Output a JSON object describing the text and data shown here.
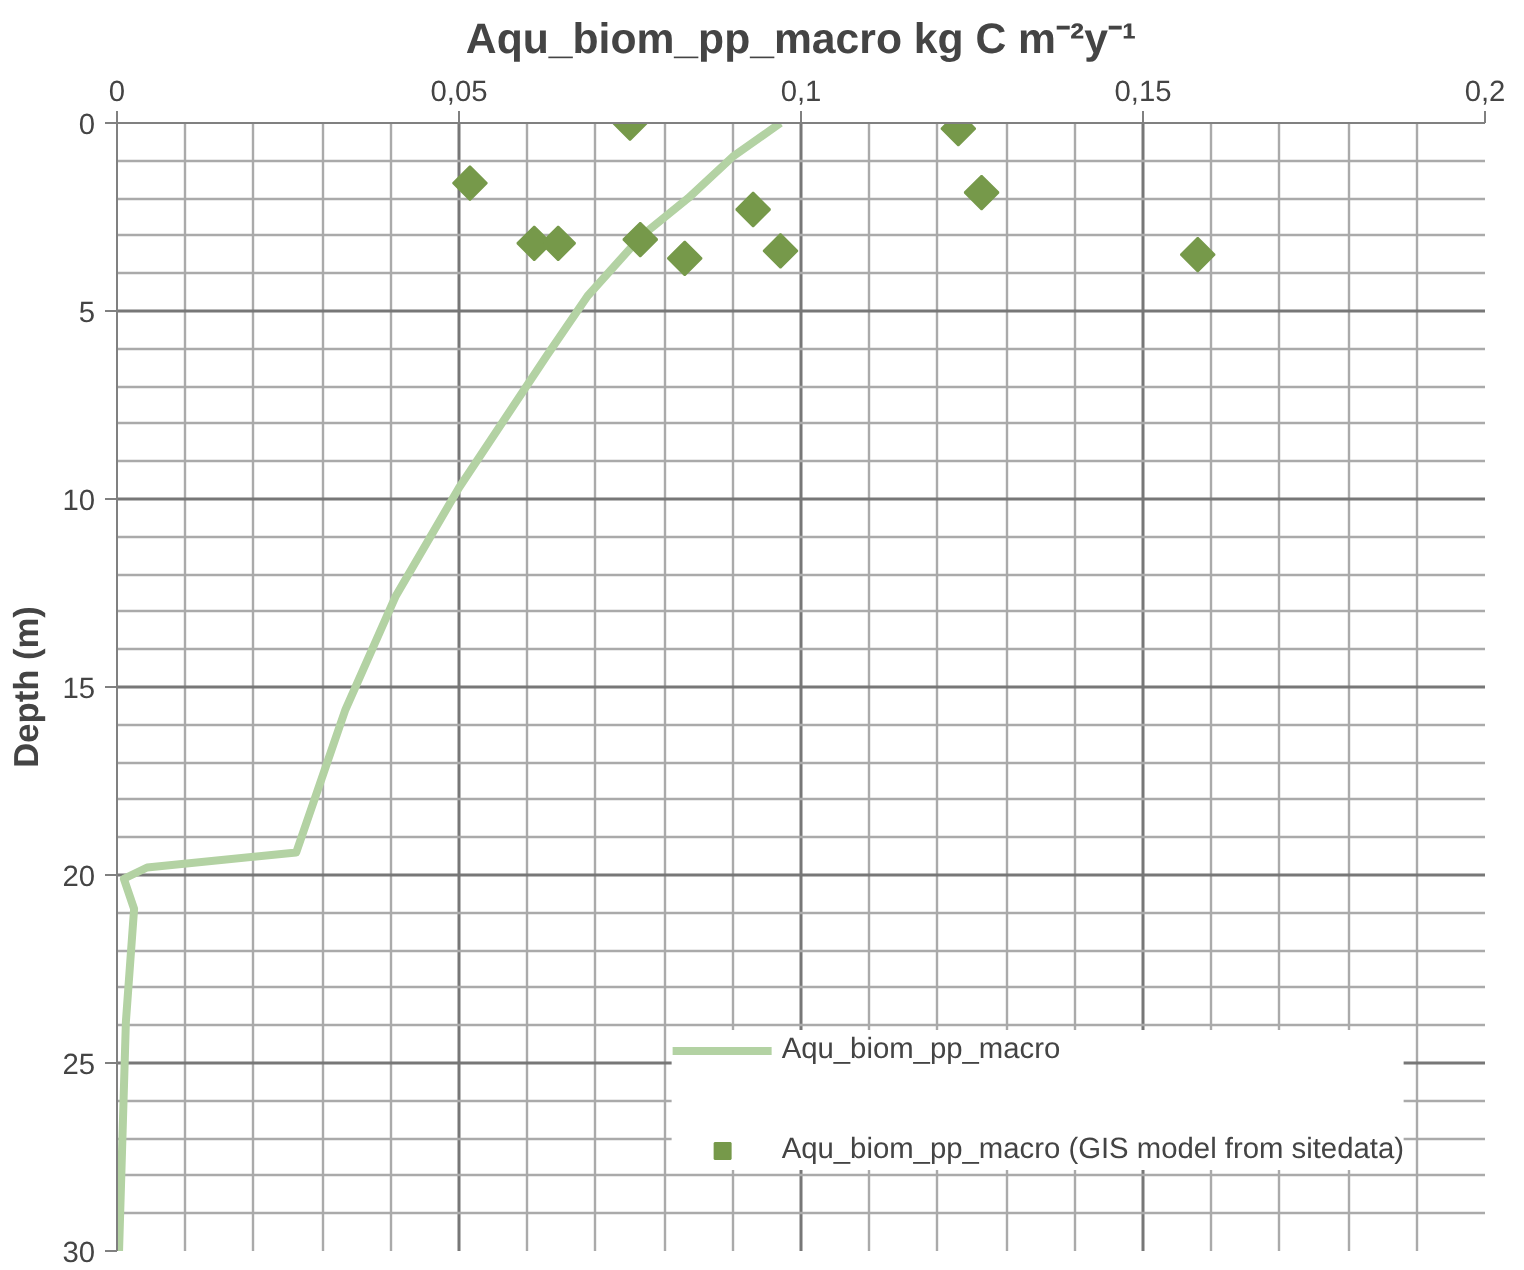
{
  "chart_data": {
    "type": "line",
    "title": "Aqu_biom_pp_macro kg C m⁻²y⁻¹",
    "ylabel": "Depth (m)",
    "xlim": [
      0,
      0.2
    ],
    "ylim": [
      30,
      0
    ],
    "xticks": [
      {
        "value": 0,
        "label": "0"
      },
      {
        "value": 0.05,
        "label": "0,05"
      },
      {
        "value": 0.1,
        "label": "0,1"
      },
      {
        "value": 0.15,
        "label": "0,15"
      },
      {
        "value": 0.2,
        "label": "0,2"
      }
    ],
    "yticks": [
      0,
      5,
      10,
      15,
      20,
      25,
      30
    ],
    "grid": true,
    "legend": "bottom right",
    "series": [
      {
        "name": "Aqu_biom_pp_macro",
        "color": "#b3d2a3",
        "marker": "none",
        "line_style": "solid",
        "x": [
          0.097,
          0.09,
          0.0835,
          0.0767,
          0.0688,
          0.0628,
          0.05,
          0.0407,
          0.0334,
          0.0262,
          0.0044,
          0.001,
          0.0025,
          0.0013,
          0.0003
        ],
        "values": [
          0,
          0.9,
          2.0,
          3.0,
          4.6,
          6.2,
          9.7,
          12.6,
          15.6,
          19.4,
          19.8,
          20.1,
          20.9,
          23.9,
          30
        ]
      },
      {
        "name": "Aqu_biom_pp_macro (GIS model from sitedata)",
        "type": "scatter",
        "color": "#76994a",
        "marker": "diamond",
        "x": [
          0.075,
          0.123,
          0.0516,
          0.1264,
          0.061,
          0.0645,
          0.0765,
          0.093,
          0.083,
          0.097,
          0.158
        ],
        "values": [
          0,
          0.15,
          1.6,
          1.85,
          3.2,
          3.2,
          3.1,
          2.3,
          3.6,
          3.4,
          3.5
        ]
      }
    ]
  }
}
